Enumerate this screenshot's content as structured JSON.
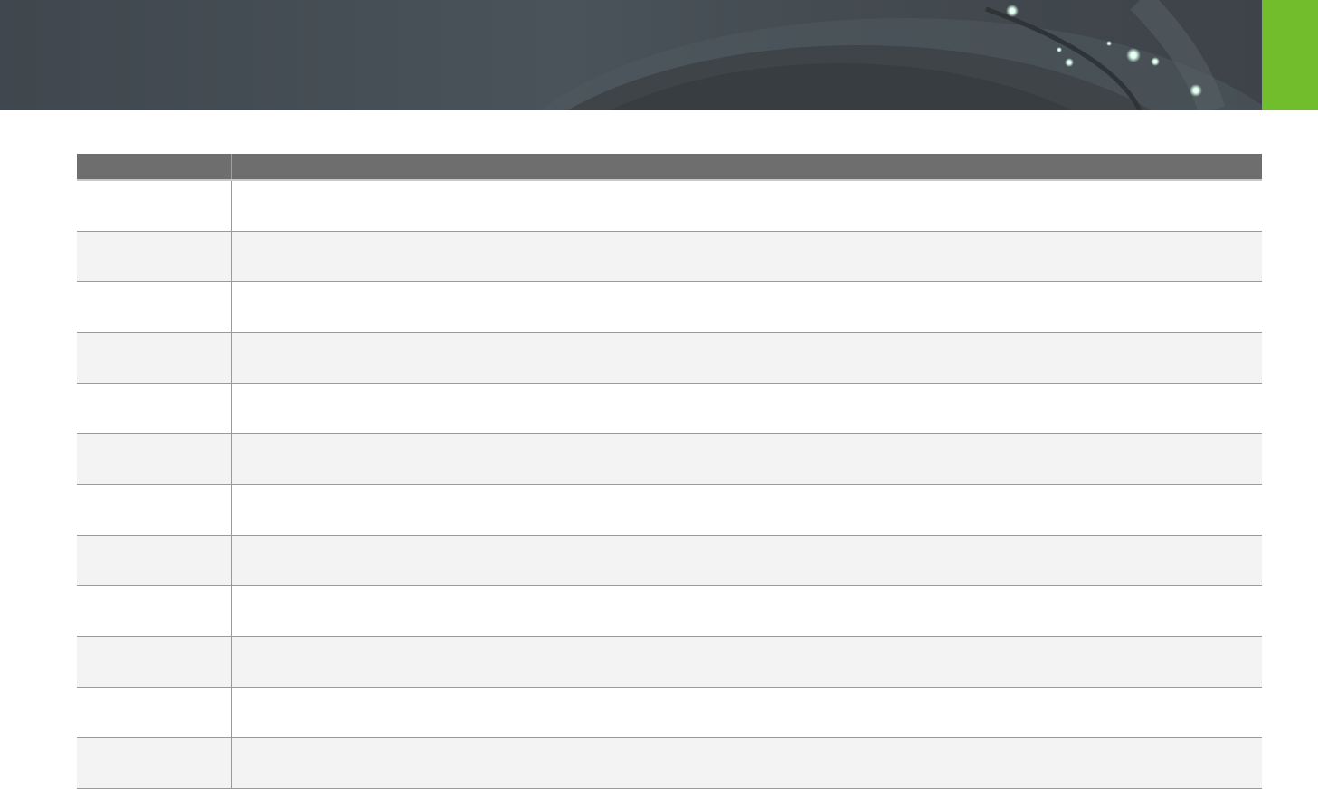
{
  "colors": {
    "banner": "#454d54",
    "accent": "#72bd2b",
    "header_row": "#6e6e6e",
    "row_alt": "#f3f3f3",
    "grid": "#9a9a9a"
  },
  "table": {
    "headers": [
      "",
      ""
    ],
    "rows": [
      [
        "",
        ""
      ],
      [
        "",
        ""
      ],
      [
        "",
        ""
      ],
      [
        "",
        ""
      ],
      [
        "",
        ""
      ],
      [
        "",
        ""
      ],
      [
        "",
        ""
      ],
      [
        "",
        ""
      ],
      [
        "",
        ""
      ],
      [
        "",
        ""
      ],
      [
        "",
        ""
      ],
      [
        "",
        ""
      ]
    ]
  }
}
